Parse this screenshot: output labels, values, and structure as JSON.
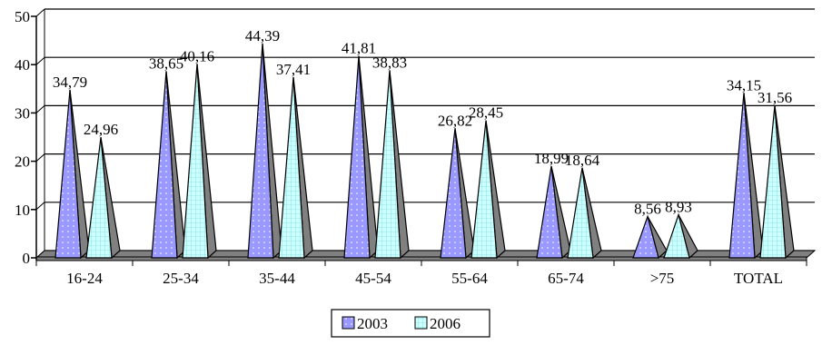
{
  "chart_data": {
    "type": "bar",
    "style": "3d-cone",
    "title": "",
    "xlabel": "",
    "ylabel": "",
    "ylim": [
      0,
      50
    ],
    "yticks": [
      0,
      10,
      20,
      30,
      40,
      50
    ],
    "grid": true,
    "legend": "bottom-center",
    "categories": [
      "16-24",
      "25-34",
      "35-44",
      "45-54",
      "55-64",
      "65-74",
      ">75",
      "TOTAL"
    ],
    "series": [
      {
        "name": "2003",
        "color": "#9999ff",
        "pattern": "dots",
        "values": [
          34.79,
          38.65,
          44.39,
          41.81,
          26.82,
          18.99,
          8.56,
          34.15
        ],
        "labels": [
          "34,79",
          "38,65",
          "44,39",
          "41,81",
          "26,82",
          "18,99",
          "8,56",
          "34,15"
        ]
      },
      {
        "name": "2006",
        "color": "#ccffff",
        "pattern": "grid",
        "values": [
          24.96,
          40.16,
          37.41,
          38.83,
          28.45,
          18.64,
          8.93,
          31.56
        ],
        "labels": [
          "24,96",
          "40,16",
          "37,41",
          "38,83",
          "28,45",
          "18,64",
          "8,93",
          "31,56"
        ]
      }
    ]
  }
}
